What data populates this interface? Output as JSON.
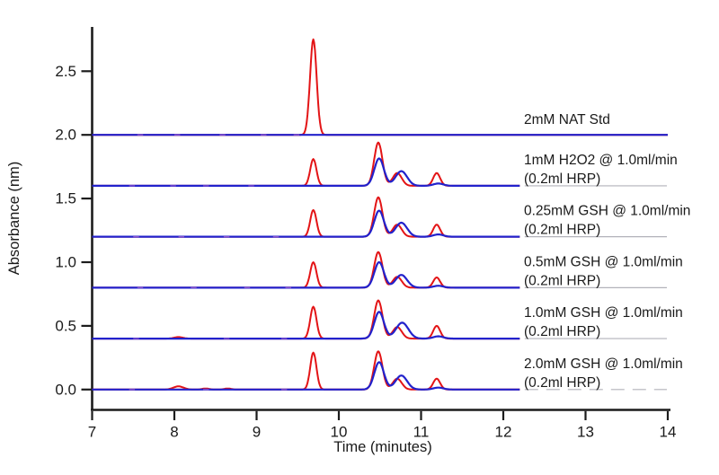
{
  "chart_data": {
    "type": "line",
    "title": "",
    "xlabel": "Time (minutes)",
    "ylabel": "Absorbance (nm)",
    "xlim": [
      7,
      14
    ],
    "ylim": [
      -0.15,
      2.9
    ],
    "grid": false,
    "legend_position": "none",
    "axis_color": "#1c1c1c",
    "annotation_color": "#1a1a1a",
    "series_colors": {
      "reaction_red": "#e31416",
      "control_blue": "#2222cc"
    },
    "baseline_extension_color": "#b2b2ba",
    "noise_color": "#9a5ad0",
    "x_ticks": [
      7,
      8,
      9,
      10,
      11,
      12,
      13,
      14
    ],
    "y_ticks": [
      {
        "v": 0.0,
        "label": "0.0"
      },
      {
        "v": 0.5,
        "label": "0.5"
      },
      {
        "v": 1.0,
        "label": "1.0"
      },
      {
        "v": 1.5,
        "label": "1.5"
      },
      {
        "v": 2.0,
        "label": "2.0"
      },
      {
        "v": 2.5,
        "label": "2.5"
      }
    ],
    "offset_between_traces": 0.4,
    "traces": [
      {
        "label_lines": [
          "2mM NAT Std"
        ],
        "offset": 2.0,
        "x_end": 14.0,
        "gray_extension": false,
        "gray_dashed": false,
        "red_peaks": [
          {
            "t": 9.69,
            "h": 0.75,
            "w": 0.04
          }
        ],
        "blue_peaks": [],
        "noise_t": [
          7.55,
          8.0,
          8.55,
          9.05,
          9.45
        ]
      },
      {
        "label_lines": [
          "1mM H2O2 @ 1.0ml/min",
          "(0.2ml HRP)"
        ],
        "offset": 1.6,
        "x_end": 12.2,
        "gray_extension": true,
        "gray_dashed": false,
        "red_peaks": [
          {
            "t": 9.69,
            "h": 0.21,
            "w": 0.038
          },
          {
            "t": 10.48,
            "h": 0.34,
            "w": 0.05
          },
          {
            "t": 10.71,
            "h": 0.1,
            "w": 0.055
          },
          {
            "t": 11.19,
            "h": 0.1,
            "w": 0.042
          }
        ],
        "blue_peaks": [
          {
            "t": 10.49,
            "h": 0.215,
            "w": 0.058
          },
          {
            "t": 10.76,
            "h": 0.115,
            "w": 0.07
          },
          {
            "t": 11.21,
            "h": 0.018,
            "w": 0.06
          }
        ],
        "noise_t": [
          7.45,
          7.95,
          8.35,
          8.9
        ]
      },
      {
        "label_lines": [
          "0.25mM GSH @ 1.0ml/min",
          "(0.2ml HRP)"
        ],
        "offset": 1.2,
        "x_end": 12.2,
        "gray_extension": true,
        "gray_dashed": false,
        "red_peaks": [
          {
            "t": 9.69,
            "h": 0.21,
            "w": 0.038
          },
          {
            "t": 10.48,
            "h": 0.31,
            "w": 0.05
          },
          {
            "t": 10.71,
            "h": 0.095,
            "w": 0.055
          },
          {
            "t": 11.19,
            "h": 0.095,
            "w": 0.042
          }
        ],
        "blue_peaks": [
          {
            "t": 10.49,
            "h": 0.205,
            "w": 0.058
          },
          {
            "t": 10.76,
            "h": 0.11,
            "w": 0.07
          },
          {
            "t": 11.21,
            "h": 0.018,
            "w": 0.06
          }
        ],
        "noise_t": [
          7.5,
          8.05,
          8.6,
          9.2
        ]
      },
      {
        "label_lines": [
          "0.5mM GSH @ 1.0ml/min",
          "(0.2ml HRP)"
        ],
        "offset": 0.8,
        "x_end": 12.2,
        "gray_extension": true,
        "gray_dashed": false,
        "red_peaks": [
          {
            "t": 9.69,
            "h": 0.2,
            "w": 0.038
          },
          {
            "t": 10.48,
            "h": 0.28,
            "w": 0.05
          },
          {
            "t": 10.71,
            "h": 0.085,
            "w": 0.055
          },
          {
            "t": 11.19,
            "h": 0.08,
            "w": 0.042
          }
        ],
        "blue_peaks": [
          {
            "t": 10.49,
            "h": 0.2,
            "w": 0.058
          },
          {
            "t": 10.76,
            "h": 0.1,
            "w": 0.07
          },
          {
            "t": 11.21,
            "h": 0.015,
            "w": 0.06
          }
        ],
        "noise_t": [
          7.55,
          8.2,
          8.85,
          9.35
        ]
      },
      {
        "label_lines": [
          "1.0mM GSH @ 1.0ml/min",
          "(0.2ml HRP)"
        ],
        "offset": 0.4,
        "x_end": 12.2,
        "gray_extension": true,
        "gray_dashed": false,
        "red_peaks": [
          {
            "t": 8.05,
            "h": 0.012,
            "w": 0.05
          },
          {
            "t": 9.69,
            "h": 0.25,
            "w": 0.038
          },
          {
            "t": 10.48,
            "h": 0.3,
            "w": 0.05
          },
          {
            "t": 10.71,
            "h": 0.09,
            "w": 0.055
          },
          {
            "t": 11.19,
            "h": 0.1,
            "w": 0.042
          }
        ],
        "blue_peaks": [
          {
            "t": 10.49,
            "h": 0.21,
            "w": 0.058
          },
          {
            "t": 10.77,
            "h": 0.125,
            "w": 0.075
          },
          {
            "t": 11.21,
            "h": 0.018,
            "w": 0.06
          }
        ],
        "noise_t": [
          7.5,
          8.6,
          9.3
        ]
      },
      {
        "label_lines": [
          "2.0mM GSH @ 1.0ml/min",
          "(0.2ml HRP)"
        ],
        "offset": 0.0,
        "x_end": 12.2,
        "gray_extension": true,
        "gray_dashed": true,
        "red_peaks": [
          {
            "t": 8.05,
            "h": 0.025,
            "w": 0.06
          },
          {
            "t": 8.38,
            "h": 0.008,
            "w": 0.04
          },
          {
            "t": 8.65,
            "h": 0.008,
            "w": 0.04
          },
          {
            "t": 9.69,
            "h": 0.29,
            "w": 0.038
          },
          {
            "t": 10.48,
            "h": 0.3,
            "w": 0.05
          },
          {
            "t": 10.71,
            "h": 0.085,
            "w": 0.055
          },
          {
            "t": 11.19,
            "h": 0.085,
            "w": 0.042
          }
        ],
        "blue_peaks": [
          {
            "t": 10.49,
            "h": 0.215,
            "w": 0.058
          },
          {
            "t": 10.76,
            "h": 0.11,
            "w": 0.07
          },
          {
            "t": 11.21,
            "h": 0.015,
            "w": 0.06
          }
        ],
        "noise_t": [
          7.45,
          8.35,
          9.3
        ]
      }
    ]
  }
}
